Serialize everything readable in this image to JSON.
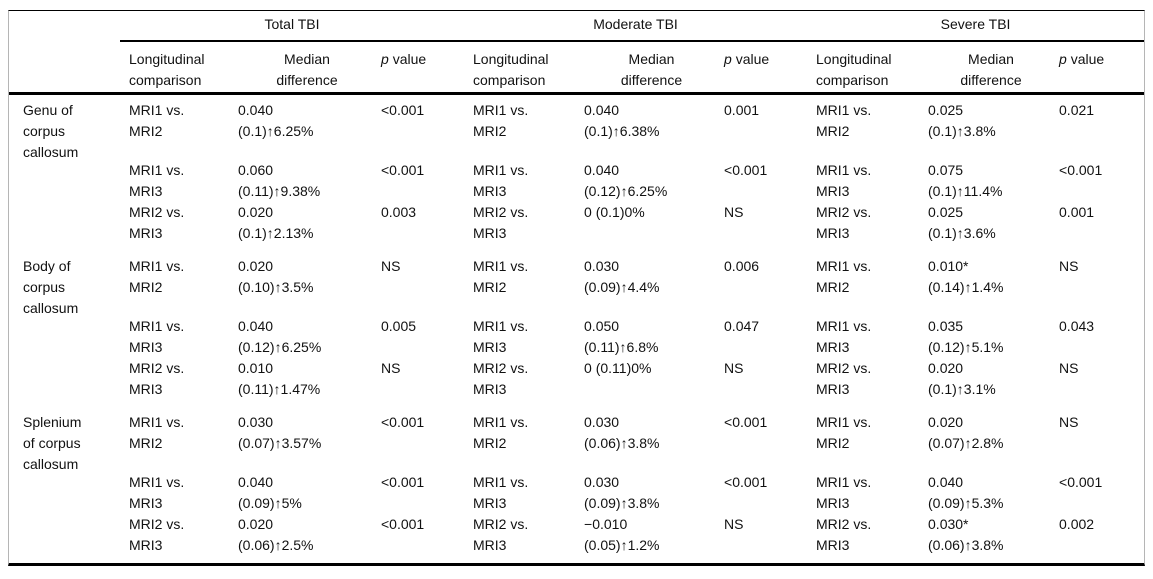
{
  "groups": [
    {
      "label": "Total TBI"
    },
    {
      "label": "Moderate TBI"
    },
    {
      "label": "Severe TBI"
    }
  ],
  "col_headers": {
    "longitudinal": [
      "Longitudinal",
      "comparison"
    ],
    "median": [
      "Median",
      "difference"
    ],
    "p_italic": "p",
    "p_rest": "value"
  },
  "regions": [
    {
      "label_lines": [
        "Genu of",
        "corpus",
        "callosum"
      ],
      "comparisons": [
        {
          "total": {
            "comparison": [
              "MRI1 vs.",
              "MRI2"
            ],
            "median": [
              "0.040",
              "(0.1)↑6.25%"
            ],
            "p": "<0.001"
          },
          "moderate": {
            "comparison": [
              "MRI1 vs.",
              "MRI2"
            ],
            "median": [
              "0.040",
              "(0.1)↑6.38%"
            ],
            "p": "0.001"
          },
          "severe": {
            "comparison": [
              "MRI1 vs.",
              "MRI2"
            ],
            "median": [
              "0.025",
              "(0.1)↑3.8%"
            ],
            "p": "0.021"
          }
        },
        {
          "total": {
            "comparison": [
              "MRI1 vs.",
              "MRI3"
            ],
            "median": [
              "0.060",
              "(0.11)↑9.38%"
            ],
            "p": "<0.001"
          },
          "moderate": {
            "comparison": [
              "MRI1 vs.",
              "MRI3"
            ],
            "median": [
              "0.040",
              "(0.12)↑6.25%"
            ],
            "p": "<0.001"
          },
          "severe": {
            "comparison": [
              "MRI1 vs.",
              "MRI3"
            ],
            "median": [
              "0.075",
              "(0.1)↑11.4%"
            ],
            "p": "<0.001"
          }
        },
        {
          "total": {
            "comparison": [
              "MRI2 vs.",
              "MRI3"
            ],
            "median": [
              "0.020",
              "(0.1)↑2.13%"
            ],
            "p": "0.003"
          },
          "moderate": {
            "comparison": [
              "MRI2 vs.",
              "MRI3"
            ],
            "median": [
              "0 (0.1)0%"
            ],
            "p": "NS"
          },
          "severe": {
            "comparison": [
              "MRI2 vs.",
              "MRI3"
            ],
            "median": [
              "0.025",
              "(0.1)↑3.6%"
            ],
            "p": "0.001"
          }
        }
      ]
    },
    {
      "label_lines": [
        "Body of",
        "corpus",
        "callosum"
      ],
      "comparisons": [
        {
          "total": {
            "comparison": [
              "MRI1 vs.",
              "MRI2"
            ],
            "median": [
              "0.020",
              "(0.10)↑3.5%"
            ],
            "p": "NS"
          },
          "moderate": {
            "comparison": [
              "MRI1 vs.",
              "MRI2"
            ],
            "median": [
              "0.030",
              "(0.09)↑4.4%"
            ],
            "p": "0.006"
          },
          "severe": {
            "comparison": [
              "MRI1 vs.",
              "MRI2"
            ],
            "median": [
              "0.010*",
              "(0.14)↑1.4%"
            ],
            "p": "NS"
          }
        },
        {
          "total": {
            "comparison": [
              "MRI1 vs.",
              "MRI3"
            ],
            "median": [
              "0.040",
              "(0.12)↑6.25%"
            ],
            "p": "0.005"
          },
          "moderate": {
            "comparison": [
              "MRI1 vs.",
              "MRI3"
            ],
            "median": [
              "0.050",
              "(0.11)↑6.8%"
            ],
            "p": "0.047"
          },
          "severe": {
            "comparison": [
              "MRI1 vs.",
              "MRI3"
            ],
            "median": [
              "0.035",
              "(0.12)↑5.1%"
            ],
            "p": "0.043"
          }
        },
        {
          "total": {
            "comparison": [
              "MRI2 vs.",
              "MRI3"
            ],
            "median": [
              "0.010",
              "(0.11)↑1.47%"
            ],
            "p": "NS"
          },
          "moderate": {
            "comparison": [
              "MRI2 vs.",
              "MRI3"
            ],
            "median": [
              "0 (0.11)0%"
            ],
            "p": "NS"
          },
          "severe": {
            "comparison": [
              "MRI2 vs.",
              "MRI3"
            ],
            "median": [
              "0.020",
              "(0.1)↑3.1%"
            ],
            "p": "NS"
          }
        }
      ]
    },
    {
      "label_lines": [
        "Splenium",
        "of corpus",
        "callosum"
      ],
      "comparisons": [
        {
          "total": {
            "comparison": [
              "MRI1 vs.",
              "MRI2"
            ],
            "median": [
              "0.030",
              "(0.07)↑3.57%"
            ],
            "p": "<0.001"
          },
          "moderate": {
            "comparison": [
              "MRI1 vs.",
              "MRI2"
            ],
            "median": [
              "0.030",
              "(0.06)↑3.8%"
            ],
            "p": "<0.001"
          },
          "severe": {
            "comparison": [
              "MRI1 vs.",
              "MRI2"
            ],
            "median": [
              "0.020",
              "(0.07)↑2.8%"
            ],
            "p": "NS"
          }
        },
        {
          "total": {
            "comparison": [
              "MRI1 vs.",
              "MRI3"
            ],
            "median": [
              "0.040",
              "(0.09)↑5%"
            ],
            "p": "<0.001"
          },
          "moderate": {
            "comparison": [
              "MRI1 vs.",
              "MRI3"
            ],
            "median": [
              "0.030",
              "(0.09)↑3.8%"
            ],
            "p": "<0.001"
          },
          "severe": {
            "comparison": [
              "MRI1 vs.",
              "MRI3"
            ],
            "median": [
              "0.040",
              "(0.09)↑5.3%"
            ],
            "p": "<0.001"
          }
        },
        {
          "total": {
            "comparison": [
              "MRI2 vs.",
              "MRI3"
            ],
            "median": [
              "0.020",
              "(0.06)↑2.5%"
            ],
            "p": "<0.001"
          },
          "moderate": {
            "comparison": [
              "MRI2 vs.",
              "MRI3"
            ],
            "median": [
              "−0.010",
              "(0.05)↑1.2%"
            ],
            "p": "NS"
          },
          "severe": {
            "comparison": [
              "MRI2 vs.",
              "MRI3"
            ],
            "median": [
              "0.030*",
              "(0.06)↑3.8%"
            ],
            "p": "0.002"
          }
        }
      ]
    }
  ]
}
